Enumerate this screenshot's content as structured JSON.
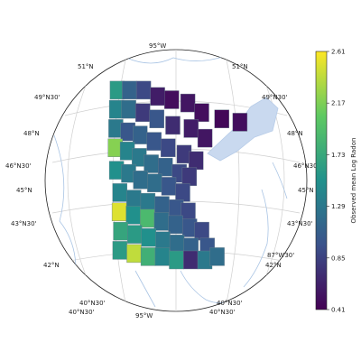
{
  "chart_data": {
    "type": "heatmap",
    "projection": "orthographic",
    "colormap": "viridis",
    "title": "",
    "colorbar": {
      "label": "Observed mean Log Radon",
      "ticks": [
        "2.61",
        "2.17",
        "1.73",
        "1.29",
        "0.85",
        "0.41"
      ],
      "min": 0.41,
      "max": 2.61
    },
    "graticule_labels": [
      "95°W",
      "51°N",
      "51°N",
      "49°N30'",
      "49°N30'",
      "48°N",
      "48°N",
      "46°N30'",
      "46°N30'",
      "45°N",
      "45°N",
      "43°N30'",
      "43°N30'",
      "87°W30'",
      "42°N",
      "42°N",
      "40°N30'",
      "40°N30'",
      "40°N30'",
      "40°N30'",
      "95°W"
    ],
    "counties": [
      {
        "lon": -96.6,
        "lat": 48.8,
        "value": 1.6
      },
      {
        "lon": -96.0,
        "lat": 48.8,
        "value": 1.1
      },
      {
        "lon": -95.3,
        "lat": 48.8,
        "value": 0.9
      },
      {
        "lon": -94.6,
        "lat": 48.6,
        "value": 0.6
      },
      {
        "lon": -93.9,
        "lat": 48.5,
        "value": 0.5
      },
      {
        "lon": -93.1,
        "lat": 48.4,
        "value": 0.55
      },
      {
        "lon": -92.4,
        "lat": 48.1,
        "value": 0.5
      },
      {
        "lon": -91.4,
        "lat": 47.9,
        "value": 0.45
      },
      {
        "lon": -90.5,
        "lat": 47.8,
        "value": 0.5
      },
      {
        "lon": -96.6,
        "lat": 48.2,
        "value": 1.4
      },
      {
        "lon": -96.0,
        "lat": 48.2,
        "value": 1.2
      },
      {
        "lon": -95.3,
        "lat": 48.1,
        "value": 0.8
      },
      {
        "lon": -94.6,
        "lat": 47.9,
        "value": 1.0
      },
      {
        "lon": -93.8,
        "lat": 47.7,
        "value": 0.7
      },
      {
        "lon": -92.9,
        "lat": 47.6,
        "value": 0.6
      },
      {
        "lon": -92.2,
        "lat": 47.3,
        "value": 0.55
      },
      {
        "lon": -96.6,
        "lat": 47.6,
        "value": 1.3
      },
      {
        "lon": -96.0,
        "lat": 47.5,
        "value": 1.0
      },
      {
        "lon": -95.4,
        "lat": 47.4,
        "value": 1.1
      },
      {
        "lon": -94.7,
        "lat": 47.2,
        "value": 1.0
      },
      {
        "lon": -94.0,
        "lat": 47.0,
        "value": 0.9
      },
      {
        "lon": -93.2,
        "lat": 46.8,
        "value": 0.8
      },
      {
        "lon": -92.6,
        "lat": 46.6,
        "value": 0.7
      },
      {
        "lon": -96.6,
        "lat": 47.0,
        "value": 2.2
      },
      {
        "lon": -96.0,
        "lat": 46.9,
        "value": 1.4
      },
      {
        "lon": -95.4,
        "lat": 46.7,
        "value": 1.3
      },
      {
        "lon": -94.8,
        "lat": 46.5,
        "value": 1.2
      },
      {
        "lon": -94.1,
        "lat": 46.4,
        "value": 1.1
      },
      {
        "lon": -93.4,
        "lat": 46.2,
        "value": 0.9
      },
      {
        "lon": -92.9,
        "lat": 46.1,
        "value": 0.8
      },
      {
        "lon": -96.5,
        "lat": 46.3,
        "value": 1.5
      },
      {
        "lon": -95.9,
        "lat": 46.2,
        "value": 1.3
      },
      {
        "lon": -95.3,
        "lat": 46.0,
        "value": 1.2
      },
      {
        "lon": -94.6,
        "lat": 45.9,
        "value": 1.2
      },
      {
        "lon": -93.9,
        "lat": 45.8,
        "value": 1.0
      },
      {
        "lon": -93.2,
        "lat": 45.6,
        "value": 0.9
      },
      {
        "lon": -96.3,
        "lat": 45.6,
        "value": 1.4
      },
      {
        "lon": -95.6,
        "lat": 45.4,
        "value": 1.3
      },
      {
        "lon": -94.9,
        "lat": 45.3,
        "value": 1.3
      },
      {
        "lon": -94.2,
        "lat": 45.2,
        "value": 1.1
      },
      {
        "lon": -93.5,
        "lat": 45.1,
        "value": 1.0
      },
      {
        "lon": -92.9,
        "lat": 45.0,
        "value": 0.9
      },
      {
        "lon": -96.3,
        "lat": 45.0,
        "value": 2.5
      },
      {
        "lon": -95.6,
        "lat": 44.9,
        "value": 1.5
      },
      {
        "lon": -94.9,
        "lat": 44.8,
        "value": 1.9
      },
      {
        "lon": -94.2,
        "lat": 44.7,
        "value": 1.2
      },
      {
        "lon": -93.5,
        "lat": 44.6,
        "value": 1.1
      },
      {
        "lon": -92.8,
        "lat": 44.5,
        "value": 1.0
      },
      {
        "lon": -92.2,
        "lat": 44.4,
        "value": 0.9
      },
      {
        "lon": -96.2,
        "lat": 44.4,
        "value": 1.7
      },
      {
        "lon": -95.5,
        "lat": 44.3,
        "value": 1.6
      },
      {
        "lon": -94.8,
        "lat": 44.2,
        "value": 1.5
      },
      {
        "lon": -94.1,
        "lat": 44.1,
        "value": 1.3
      },
      {
        "lon": -93.4,
        "lat": 44.0,
        "value": 1.2
      },
      {
        "lon": -92.7,
        "lat": 43.9,
        "value": 1.1
      },
      {
        "lon": -91.9,
        "lat": 43.9,
        "value": 1.0
      },
      {
        "lon": -96.2,
        "lat": 43.8,
        "value": 1.6
      },
      {
        "lon": -95.5,
        "lat": 43.7,
        "value": 2.4
      },
      {
        "lon": -94.8,
        "lat": 43.6,
        "value": 1.8
      },
      {
        "lon": -94.1,
        "lat": 43.6,
        "value": 1.4
      },
      {
        "lon": -93.4,
        "lat": 43.5,
        "value": 1.6
      },
      {
        "lon": -92.7,
        "lat": 43.5,
        "value": 0.7
      },
      {
        "lon": -92.0,
        "lat": 43.5,
        "value": 1.3
      },
      {
        "lon": -91.4,
        "lat": 43.6,
        "value": 1.2
      }
    ]
  }
}
